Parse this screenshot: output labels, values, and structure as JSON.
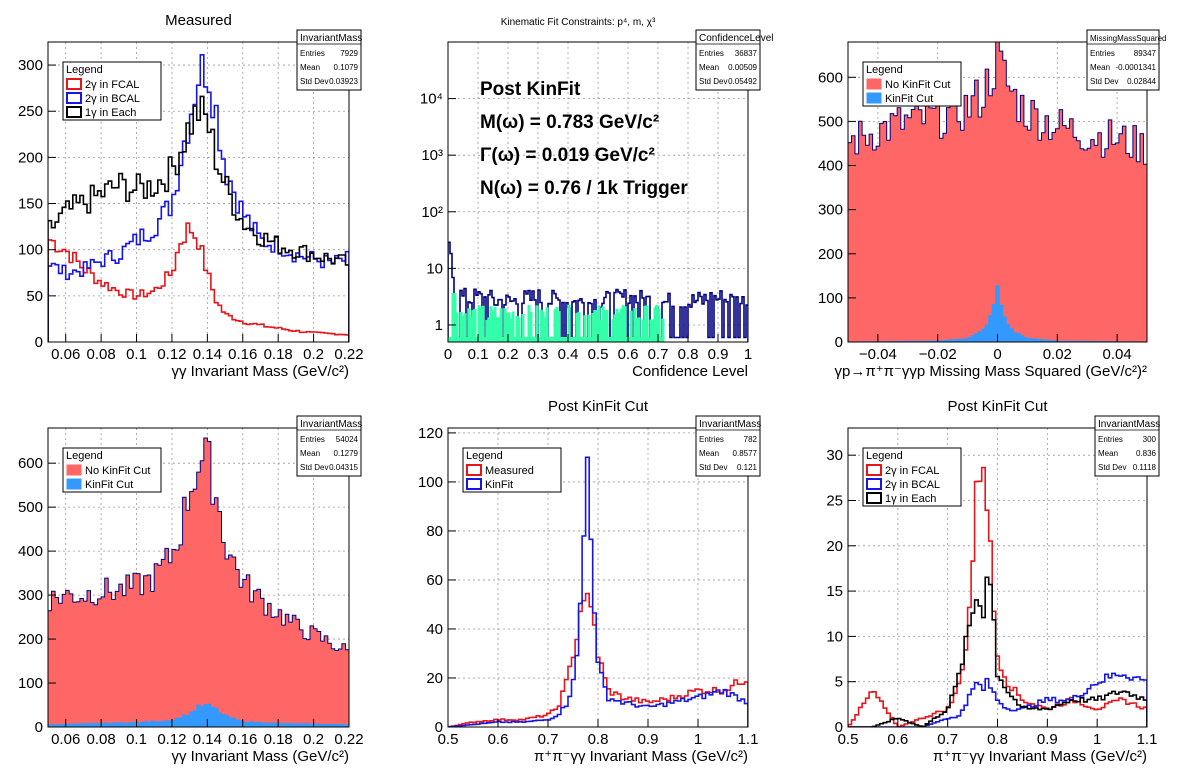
{
  "colors": {
    "red": "#e8141a",
    "blue": "#1515e6",
    "black": "#000000",
    "salmon": "#ff6666",
    "sky": "#3399ff",
    "navy": "#000080",
    "teal": "#33ffaa",
    "titleblue": "#2e2ee0"
  },
  "chart_data": [
    {
      "type": "line",
      "title": "Measured",
      "xlabel": "γγ Invariant Mass (GeV/c²)",
      "ylabel": "",
      "xlim": [
        0.05,
        0.22
      ],
      "ylim": [
        0,
        325
      ],
      "xticks": [
        0.06,
        0.08,
        0.1,
        0.12,
        0.14,
        0.16,
        0.18,
        0.2,
        0.22
      ],
      "xtick_labels": [
        "0.06",
        "0.08",
        "0.1",
        "0.12",
        "0.14",
        "0.16",
        "0.18",
        "0.2",
        "0.22"
      ],
      "yticks": [
        0,
        50,
        100,
        150,
        200,
        250,
        300
      ],
      "ytick_labels": [
        "0",
        "50",
        "100",
        "150",
        "200",
        "250",
        "300"
      ],
      "legend": {
        "title": "Legend",
        "entries": [
          "2γ in FCAL",
          "2γ in BCAL",
          "1γ in Each"
        ],
        "position": "top-left"
      },
      "stats": {
        "name": "InvariantMass",
        "rows": [
          [
            "Entries",
            "7929"
          ],
          [
            "Mean",
            "0.1079"
          ],
          [
            "Std Dev",
            "0.03923"
          ]
        ]
      },
      "series": [
        {
          "name": "2γ in FCAL",
          "color": "#e8141a",
          "x": [
            0.05,
            0.06,
            0.07,
            0.08,
            0.09,
            0.1,
            0.11,
            0.12,
            0.125,
            0.13,
            0.135,
            0.14,
            0.145,
            0.15,
            0.16,
            0.17,
            0.18,
            0.19,
            0.2,
            0.21,
            0.22
          ],
          "values": [
            112,
            100,
            80,
            65,
            55,
            50,
            55,
            75,
            110,
            125,
            110,
            75,
            45,
            30,
            22,
            18,
            15,
            12,
            10,
            9,
            8
          ]
        },
        {
          "name": "2γ in BCAL",
          "color": "#1515e6",
          "x": [
            0.05,
            0.06,
            0.07,
            0.08,
            0.09,
            0.1,
            0.11,
            0.12,
            0.125,
            0.13,
            0.135,
            0.14,
            0.145,
            0.15,
            0.16,
            0.17,
            0.18,
            0.19,
            0.2,
            0.21,
            0.22
          ],
          "values": [
            85,
            75,
            78,
            88,
            95,
            110,
            125,
            150,
            200,
            245,
            290,
            300,
            250,
            190,
            140,
            110,
            105,
            95,
            90,
            85,
            90
          ]
        },
        {
          "name": "1γ in Each",
          "color": "#000000",
          "x": [
            0.05,
            0.06,
            0.07,
            0.08,
            0.09,
            0.1,
            0.11,
            0.12,
            0.125,
            0.13,
            0.135,
            0.14,
            0.145,
            0.15,
            0.16,
            0.17,
            0.18,
            0.19,
            0.2,
            0.21,
            0.22
          ],
          "values": [
            120,
            140,
            150,
            160,
            170,
            165,
            170,
            185,
            210,
            235,
            250,
            240,
            200,
            170,
            130,
            115,
            105,
            100,
            95,
            90,
            85
          ]
        }
      ]
    },
    {
      "type": "bar",
      "title": "Kinematic Fit Constraints: p⁴, m, χ³",
      "xlabel": "Confidence Level",
      "ylabel": "",
      "xlim": [
        0,
        1
      ],
      "ylim": [
        0.5,
        100000
      ],
      "log_y": true,
      "xticks": [
        0,
        0.1,
        0.2,
        0.3,
        0.4,
        0.5,
        0.6,
        0.7,
        0.8,
        0.9,
        1
      ],
      "xtick_labels": [
        "0",
        "0.1",
        "0.2",
        "0.3",
        "0.4",
        "0.5",
        "0.6",
        "0.7",
        "0.8",
        "0.9",
        "1"
      ],
      "yticks": [
        1,
        10,
        100,
        1000,
        10000
      ],
      "ytick_labels": [
        "1",
        "10",
        "10²",
        "10³",
        "10⁴"
      ],
      "stats": {
        "name": "ConfidenceLevel",
        "rows": [
          [
            "Entries",
            "36837"
          ],
          [
            "Mean",
            "0.00509"
          ],
          [
            "Std Dev",
            "0.05492"
          ]
        ]
      },
      "annotations": [
        "Post KinFit",
        "M(ω) = 0.783 GeV/c²",
        "Γ(ω) = 0.019 GeV/c²",
        "N(ω) = 0.76 / 1k Trigger"
      ],
      "series": [
        {
          "name": "navy",
          "color": "#000080",
          "x": [
            0.005,
            0.015,
            0.03,
            0.05,
            0.1,
            0.2,
            0.3,
            0.4,
            0.5,
            0.6,
            0.7,
            0.8,
            0.9,
            0.97
          ],
          "values": [
            20,
            8,
            4,
            3,
            3,
            2.5,
            3,
            2.5,
            2.5,
            3,
            2.5,
            2.5,
            3,
            2.5
          ]
        },
        {
          "name": "teal",
          "color": "#33ffaa",
          "x": [
            0.005,
            0.015,
            0.03,
            0.05,
            0.1,
            0.2,
            0.3,
            0.4,
            0.5,
            0.6,
            0.7
          ],
          "values": [
            10,
            4,
            2,
            1.5,
            1.5,
            1.5,
            1.5,
            1.5,
            1.5,
            1.5,
            1.5
          ]
        }
      ]
    },
    {
      "type": "area",
      "title": "",
      "xlabel": "γp→π⁺π⁻γγp Missing Mass Squared (GeV/c²)²",
      "ylabel": "",
      "xlim": [
        -0.05,
        0.05
      ],
      "ylim": [
        0,
        680
      ],
      "xticks": [
        -0.04,
        -0.02,
        0,
        0.02,
        0.04
      ],
      "xtick_labels": [
        "−0.04",
        "−0.02",
        "0",
        "0.02",
        "0.04"
      ],
      "yticks": [
        0,
        100,
        200,
        300,
        400,
        500,
        600
      ],
      "ytick_labels": [
        "0",
        "100",
        "200",
        "300",
        "400",
        "500",
        "600"
      ],
      "legend": {
        "title": "Legend",
        "entries": [
          "No KinFit Cut",
          "KinFit Cut"
        ],
        "position": "top-left"
      },
      "stats": {
        "name": "MissingMassSquared",
        "rows": [
          [
            "Entries",
            "89347"
          ],
          [
            "Mean",
            "-0.0001341"
          ],
          [
            "Std Dev",
            "0.02844"
          ]
        ]
      },
      "series": [
        {
          "name": "No KinFit Cut",
          "color": "#ff6666",
          "x": [
            -0.05,
            -0.04,
            -0.03,
            -0.02,
            -0.01,
            -0.005,
            0,
            0.005,
            0.01,
            0.02,
            0.03,
            0.04,
            0.05
          ],
          "values": [
            450,
            480,
            500,
            510,
            530,
            560,
            640,
            560,
            520,
            490,
            470,
            460,
            440
          ]
        },
        {
          "name": "KinFit Cut",
          "color": "#3399ff",
          "x": [
            -0.05,
            -0.02,
            -0.01,
            -0.005,
            -0.002,
            0,
            0.002,
            0.005,
            0.01,
            0.02,
            0.05
          ],
          "values": [
            0,
            2,
            8,
            25,
            60,
            120,
            60,
            25,
            8,
            2,
            0
          ]
        }
      ]
    },
    {
      "type": "area",
      "title": "",
      "xlabel": "γγ Invariant Mass (GeV/c²)",
      "ylabel": "",
      "xlim": [
        0.05,
        0.22
      ],
      "ylim": [
        0,
        680
      ],
      "xticks": [
        0.06,
        0.08,
        0.1,
        0.12,
        0.14,
        0.16,
        0.18,
        0.2,
        0.22
      ],
      "xtick_labels": [
        "0.06",
        "0.08",
        "0.1",
        "0.12",
        "0.14",
        "0.16",
        "0.18",
        "0.2",
        "0.22"
      ],
      "yticks": [
        0,
        100,
        200,
        300,
        400,
        500,
        600
      ],
      "ytick_labels": [
        "0",
        "100",
        "200",
        "300",
        "400",
        "500",
        "600"
      ],
      "legend": {
        "title": "Legend",
        "entries": [
          "No KinFit Cut",
          "KinFit Cut"
        ],
        "position": "top-left"
      },
      "stats": {
        "name": "InvariantMass",
        "rows": [
          [
            "Entries",
            "54024"
          ],
          [
            "Mean",
            "0.1279"
          ],
          [
            "Std Dev",
            "0.04315"
          ]
        ]
      },
      "series": [
        {
          "name": "No KinFit Cut",
          "color": "#ff6666",
          "x": [
            0.05,
            0.06,
            0.07,
            0.08,
            0.09,
            0.1,
            0.11,
            0.12,
            0.125,
            0.13,
            0.135,
            0.14,
            0.145,
            0.15,
            0.16,
            0.17,
            0.18,
            0.19,
            0.2,
            0.21,
            0.22
          ],
          "values": [
            290,
            300,
            300,
            310,
            310,
            320,
            340,
            390,
            450,
            540,
            600,
            610,
            530,
            420,
            330,
            290,
            260,
            230,
            210,
            190,
            170
          ]
        },
        {
          "name": "KinFit Cut",
          "color": "#3399ff",
          "x": [
            0.05,
            0.08,
            0.1,
            0.12,
            0.13,
            0.135,
            0.14,
            0.145,
            0.15,
            0.16,
            0.18,
            0.22
          ],
          "values": [
            5,
            8,
            10,
            15,
            30,
            45,
            50,
            40,
            25,
            12,
            8,
            5
          ]
        }
      ]
    },
    {
      "type": "line",
      "title": "Post KinFit Cut",
      "xlabel": "π⁺π⁻γγ Invariant Mass (GeV/c²)",
      "ylabel": "",
      "xlim": [
        0.5,
        1.1
      ],
      "ylim": [
        0,
        122
      ],
      "xticks": [
        0.5,
        0.6,
        0.7,
        0.8,
        0.9,
        1,
        1.1
      ],
      "xtick_labels": [
        "0.5",
        "0.6",
        "0.7",
        "0.8",
        "0.9",
        "1",
        "1.1"
      ],
      "yticks": [
        0,
        20,
        40,
        60,
        80,
        100,
        120
      ],
      "ytick_labels": [
        "0",
        "20",
        "40",
        "60",
        "80",
        "100",
        "120"
      ],
      "legend": {
        "title": "Legend",
        "entries": [
          "Measured",
          "KinFit"
        ],
        "position": "top-left"
      },
      "stats": {
        "name": "InvariantMass",
        "rows": [
          [
            "Entries",
            "782"
          ],
          [
            "Mean",
            "0.8577"
          ],
          [
            "Std Dev",
            "0.121"
          ]
        ]
      },
      "series": [
        {
          "name": "Measured",
          "color": "#e8141a",
          "x": [
            0.5,
            0.55,
            0.6,
            0.65,
            0.7,
            0.72,
            0.74,
            0.76,
            0.77,
            0.78,
            0.79,
            0.8,
            0.82,
            0.85,
            0.9,
            0.95,
            1.0,
            1.05,
            1.1
          ],
          "values": [
            0,
            2,
            3,
            3,
            5,
            8,
            20,
            40,
            55,
            50,
            45,
            30,
            15,
            12,
            10,
            12,
            15,
            15,
            20
          ]
        },
        {
          "name": "KinFit",
          "color": "#1515e6",
          "x": [
            0.5,
            0.55,
            0.6,
            0.65,
            0.7,
            0.72,
            0.74,
            0.76,
            0.77,
            0.78,
            0.79,
            0.8,
            0.82,
            0.85,
            0.9,
            0.95,
            1.0,
            1.05,
            1.1
          ],
          "values": [
            0,
            1,
            2,
            2,
            3,
            5,
            10,
            30,
            70,
            115,
            60,
            25,
            12,
            10,
            8,
            10,
            12,
            15,
            10
          ]
        }
      ]
    },
    {
      "type": "line",
      "title": "Post KinFit Cut",
      "xlabel": "π⁺π⁻γγ Invariant Mass (GeV/c²)",
      "ylabel": "",
      "xlim": [
        0.5,
        1.1
      ],
      "ylim": [
        0,
        33
      ],
      "xticks": [
        0.5,
        0.6,
        0.7,
        0.8,
        0.9,
        1,
        1.1
      ],
      "xtick_labels": [
        "0.5",
        "0.6",
        "0.7",
        "0.8",
        "0.9",
        "1",
        "1.1"
      ],
      "yticks": [
        0,
        5,
        10,
        15,
        20,
        25,
        30
      ],
      "ytick_labels": [
        "0",
        "5",
        "10",
        "15",
        "20",
        "25",
        "30"
      ],
      "legend": {
        "title": "Legend",
        "entries": [
          "2γ in FCAL",
          "2γ in BCAL",
          "1γ in Each"
        ],
        "position": "top-left"
      },
      "stats": {
        "name": "InvariantMass",
        "rows": [
          [
            "Entries",
            "300"
          ],
          [
            "Mean",
            "0.836"
          ],
          [
            "Std Dev",
            "0.1118"
          ]
        ]
      },
      "series": [
        {
          "name": "2γ in FCAL",
          "color": "#e8141a",
          "x": [
            0.5,
            0.55,
            0.6,
            0.65,
            0.7,
            0.72,
            0.74,
            0.76,
            0.77,
            0.78,
            0.79,
            0.8,
            0.82,
            0.85,
            0.9,
            0.95,
            1.0,
            1.05,
            1.1
          ],
          "values": [
            0,
            4,
            0,
            1,
            2,
            4,
            10,
            27,
            31,
            25,
            15,
            8,
            5,
            3,
            2,
            3,
            2,
            3,
            2
          ]
        },
        {
          "name": "2γ in BCAL",
          "color": "#1515e6",
          "x": [
            0.5,
            0.55,
            0.6,
            0.65,
            0.7,
            0.72,
            0.74,
            0.76,
            0.77,
            0.78,
            0.79,
            0.8,
            0.82,
            0.85,
            0.9,
            0.95,
            1.0,
            1.05,
            1.1
          ],
          "values": [
            0,
            0,
            0,
            0,
            1,
            1,
            3,
            5,
            4,
            5,
            4,
            3,
            2,
            2,
            3,
            3,
            5,
            6,
            5
          ]
        },
        {
          "name": "1γ in Each",
          "color": "#000000",
          "x": [
            0.5,
            0.55,
            0.6,
            0.65,
            0.7,
            0.72,
            0.74,
            0.76,
            0.77,
            0.78,
            0.79,
            0.8,
            0.82,
            0.85,
            0.9,
            0.95,
            1.0,
            1.05,
            1.1
          ],
          "values": [
            0,
            0,
            1,
            0,
            2,
            5,
            10,
            15,
            12,
            18,
            14,
            6,
            4,
            2,
            2,
            3,
            3,
            4,
            3
          ]
        }
      ]
    }
  ]
}
